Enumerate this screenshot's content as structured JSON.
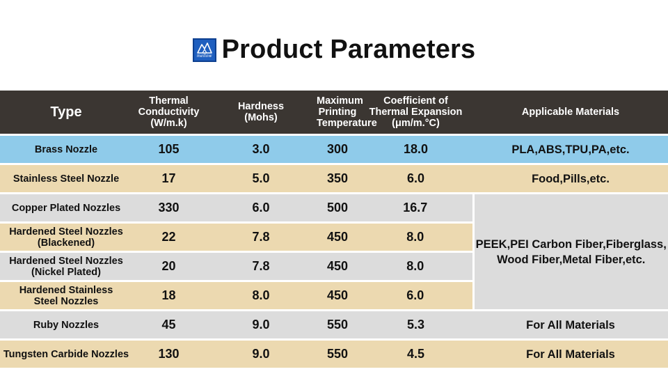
{
  "header": {
    "logo_text": "mellow",
    "title": "Product Parameters"
  },
  "table": {
    "columns": [
      "Type",
      "Thermal Conductivity\n(W/m.k)",
      "Hardness\n(Mohs)",
      "Maximum\nPrinting\nTemperature",
      "Coefficient of\nThermal Expansion\n(μm/m.°C)",
      "Applicable Materials"
    ],
    "rows": [
      {
        "type": "Brass Nozzle",
        "conductivity": "105",
        "hardness": "3.0",
        "max_temp": "300",
        "expansion": "18.0",
        "materials": "PLA,ABS,TPU,PA,etc."
      },
      {
        "type": "Stainless Steel Nozzle",
        "conductivity": "17",
        "hardness": "5.0",
        "max_temp": "350",
        "expansion": "6.0",
        "materials": "Food,Pills,etc."
      },
      {
        "type": "Copper Plated Nozzles",
        "conductivity": "330",
        "hardness": "6.0",
        "max_temp": "500",
        "expansion": "16.7",
        "materials": "PEEK,PEI Carbon Fiber,Fiberglass,\nWood Fiber,Metal Fiber,etc."
      },
      {
        "type": "Hardened Steel Nozzles\n(Blackened)",
        "conductivity": "22",
        "hardness": "7.8",
        "max_temp": "450",
        "expansion": "8.0"
      },
      {
        "type": "Hardened Steel Nozzles\n(Nickel Plated)",
        "conductivity": "20",
        "hardness": "7.8",
        "max_temp": "450",
        "expansion": "8.0"
      },
      {
        "type": "Hardened Stainless\nSteel Nozzles",
        "conductivity": "18",
        "hardness": "8.0",
        "max_temp": "450",
        "expansion": "6.0"
      },
      {
        "type": "Ruby Nozzles",
        "conductivity": "45",
        "hardness": "9.0",
        "max_temp": "550",
        "expansion": "5.3",
        "materials": "For All Materials"
      },
      {
        "type": "Tungsten Carbide Nozzles",
        "conductivity": "130",
        "hardness": "9.0",
        "max_temp": "550",
        "expansion": "4.5",
        "materials": "For All Materials"
      }
    ]
  },
  "colors": {
    "header_bg": "#3b3632",
    "highlight_row_bg": "#8fcbea",
    "highlight_text": "#e0141e",
    "tan_row_bg": "#ecd9b0",
    "gray_row_bg": "#dcdcdc",
    "logo_bg": "#1f5fbf"
  }
}
